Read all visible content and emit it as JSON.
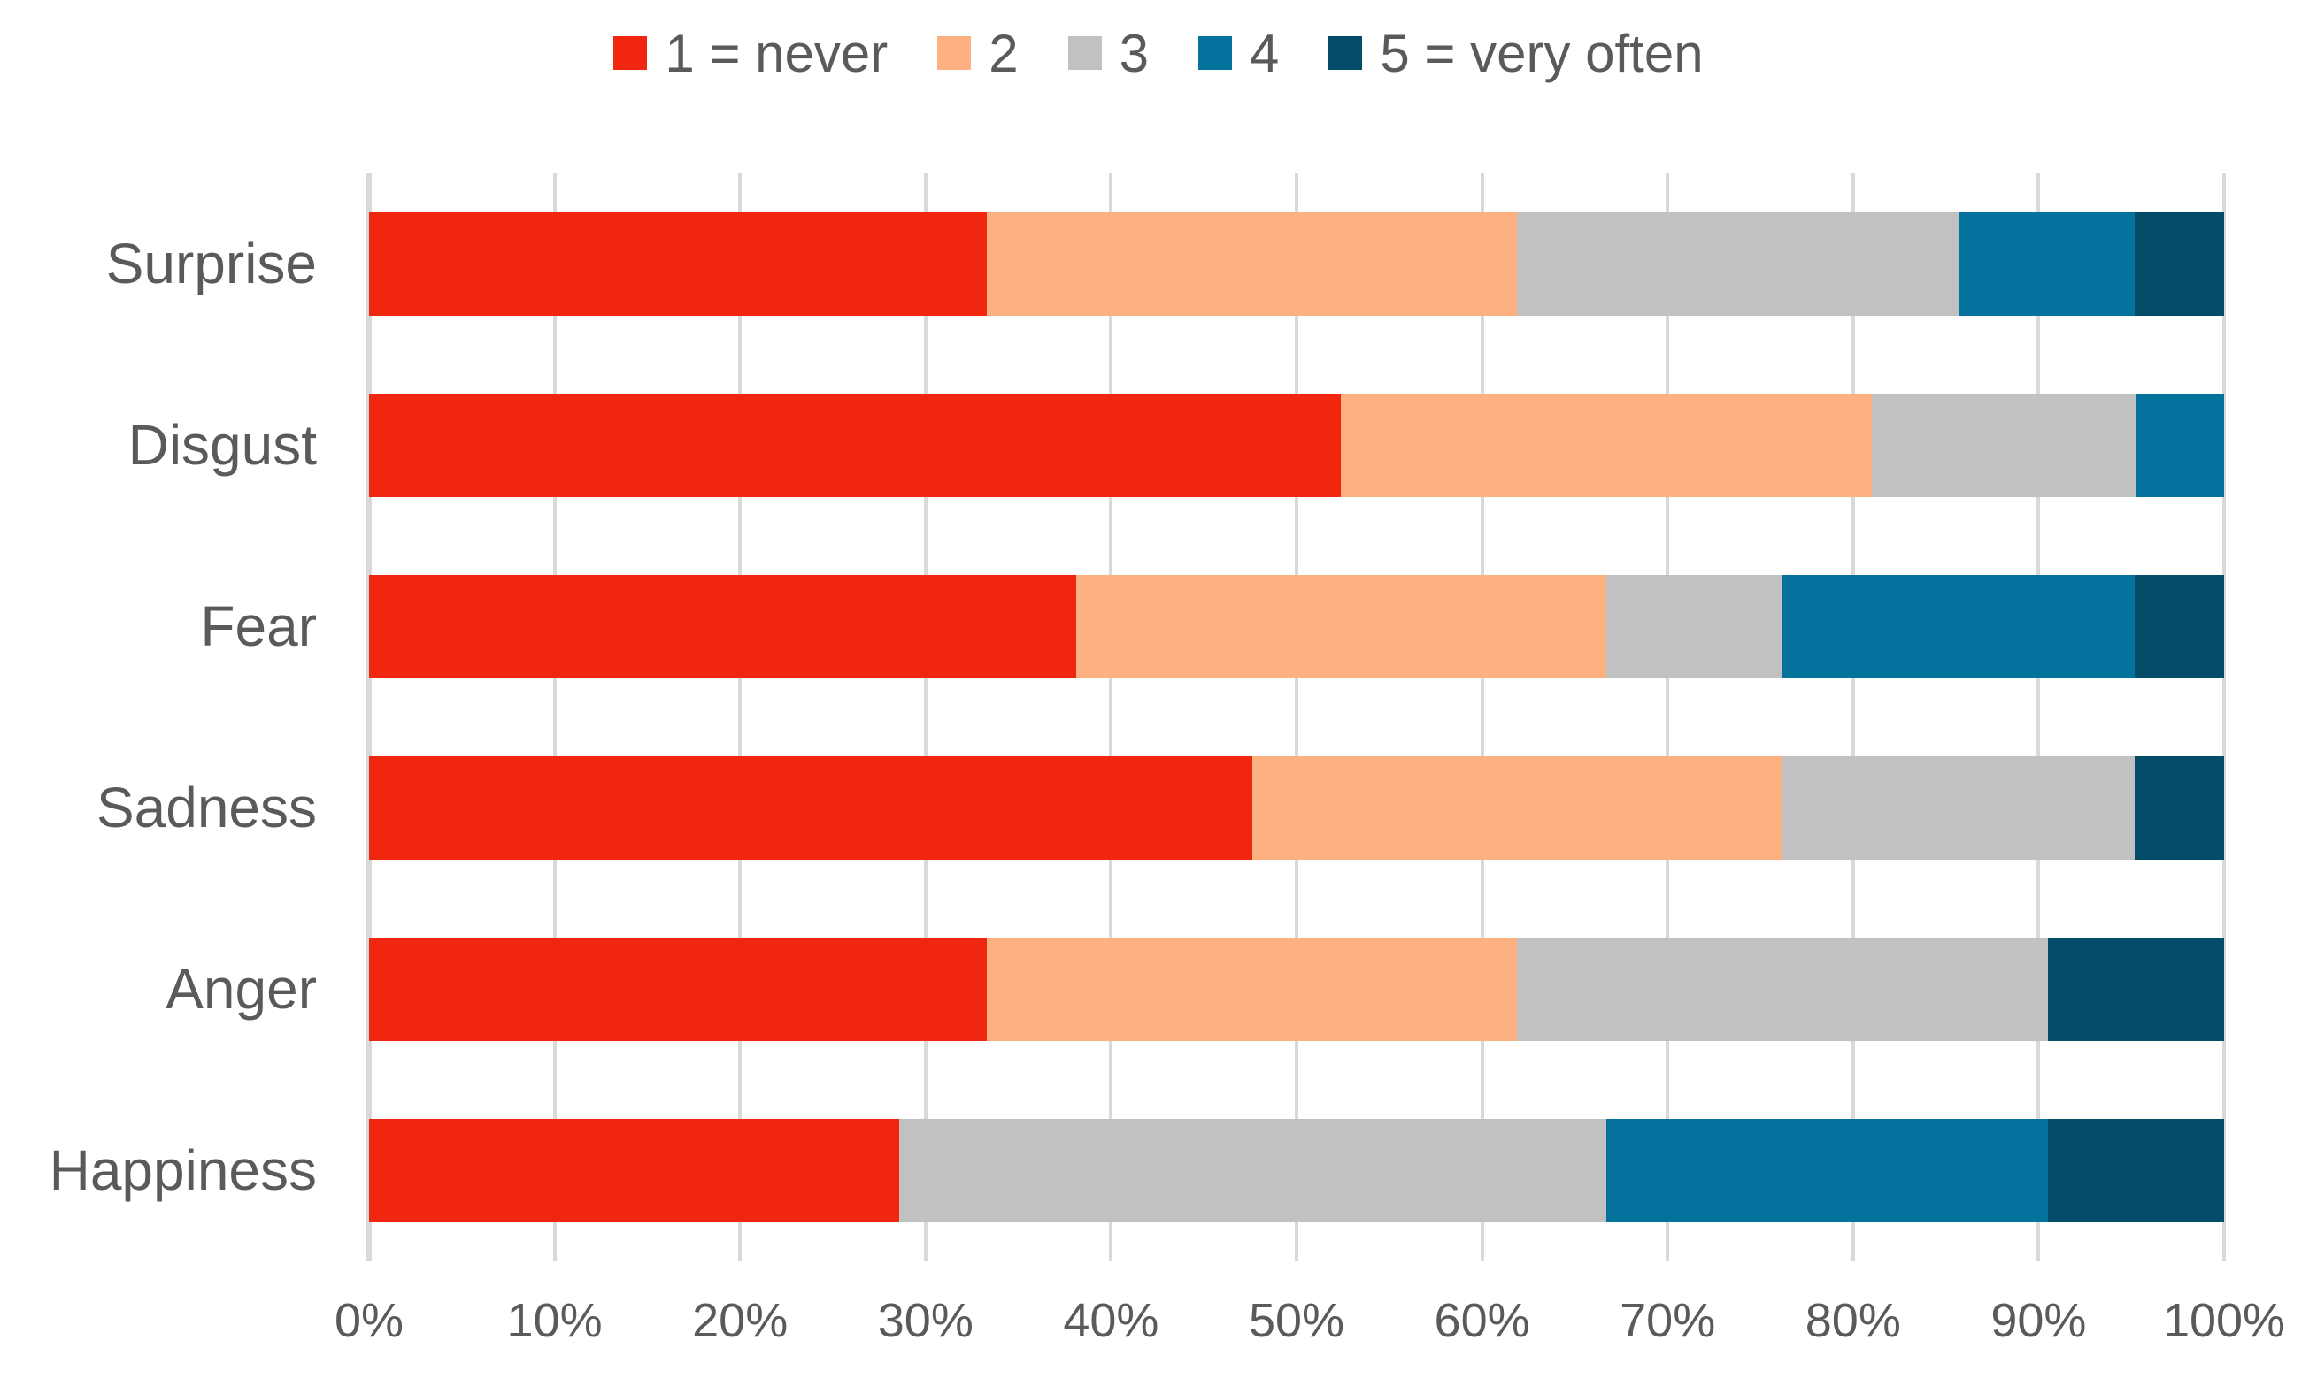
{
  "chart_data": {
    "type": "bar",
    "orientation": "horizontal",
    "stacked": true,
    "value_format": "percent",
    "title": "",
    "xlabel": "",
    "ylabel": "",
    "categories": [
      "Surprise",
      "Disgust",
      "Fear",
      "Sadness",
      "Anger",
      "Happiness"
    ],
    "series": [
      {
        "name": "1 = never",
        "color": "#f0260f",
        "values": [
          33.3,
          52.4,
          38.1,
          47.6,
          33.3,
          28.6
        ]
      },
      {
        "name": "2",
        "color": "#fdb080",
        "values": [
          28.6,
          28.6,
          28.6,
          28.6,
          28.6,
          0
        ]
      },
      {
        "name": "3",
        "color": "#c1c1c1",
        "values": [
          23.8,
          14.3,
          9.5,
          19.0,
          28.6,
          38.1
        ]
      },
      {
        "name": "4",
        "color": "#03739e",
        "values": [
          9.5,
          4.8,
          19.0,
          0,
          0,
          23.8
        ]
      },
      {
        "name": "5 = very often",
        "color": "#044d68",
        "values": [
          4.8,
          0,
          4.8,
          4.8,
          9.5,
          9.5
        ]
      }
    ],
    "x_axis": {
      "ticks": [
        "0%",
        "10%",
        "20%",
        "30%",
        "40%",
        "50%",
        "60%",
        "70%",
        "80%",
        "90%",
        "100%"
      ],
      "min": 0,
      "max": 100
    },
    "grid": "vertical",
    "legend_position": "top-center",
    "colors": {
      "background": "#ffffff",
      "text": "#5a5a5a",
      "gridline": "#d9d9d9"
    }
  }
}
